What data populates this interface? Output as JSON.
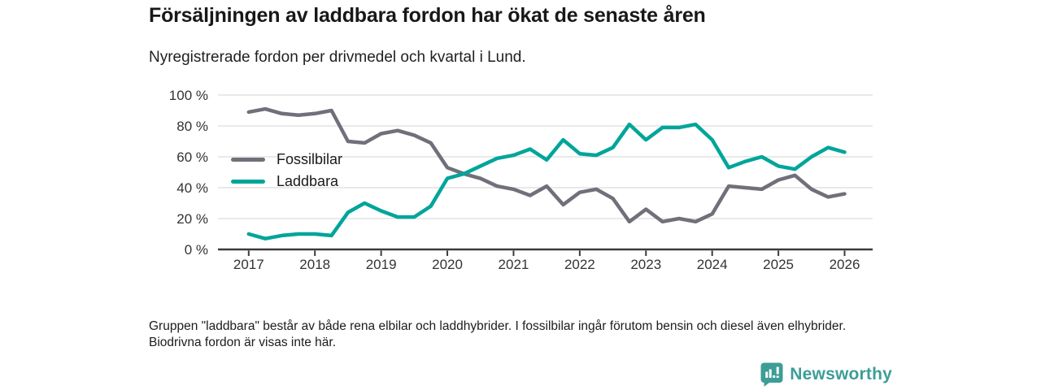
{
  "title": "Försäljningen av laddbara fordon har ökat de senaste åren",
  "subtitle": "Nyregistrerade fordon per drivmedel och kvartal i Lund.",
  "footnote": "Gruppen \"laddbara\" består av både rena elbilar och laddhybrider. I fossilbilar ingår förutom bensin och diesel även elhybrider. Biodrivna fordon är visas inte här.",
  "logo": {
    "text": "Newsworthy",
    "color": "#3d9d97"
  },
  "colors": {
    "fossil_line": "#70707a",
    "laddbara_line": "#00a59a",
    "gridline": "#dcdcdc",
    "axis": "#3b3b3b",
    "tick_label": "#333333"
  },
  "chart_data": {
    "type": "line",
    "title": "Försäljningen av laddbara fordon har ökat de senaste åren",
    "subtitle": "Nyregistrerade fordon per drivmedel och kvartal i Lund.",
    "x_unit": "kvartal",
    "grid": true,
    "legend_position": "inside-left",
    "ylim": [
      0,
      100
    ],
    "y_ticks": [
      0,
      20,
      40,
      60,
      80,
      100
    ],
    "y_tick_labels": [
      "0 %",
      "20 %",
      "40 %",
      "60 %",
      "80 %",
      "100 %"
    ],
    "x_tick_labels": [
      "2017",
      "2018",
      "2019",
      "2020",
      "2021",
      "2022",
      "2023",
      "2024",
      "2025",
      "2026"
    ],
    "x": [
      "2017Q1",
      "2017Q2",
      "2017Q3",
      "2017Q4",
      "2018Q1",
      "2018Q2",
      "2018Q3",
      "2018Q4",
      "2019Q1",
      "2019Q2",
      "2019Q3",
      "2019Q4",
      "2020Q1",
      "2020Q2",
      "2020Q3",
      "2020Q4",
      "2021Q1",
      "2021Q2",
      "2021Q3",
      "2021Q4",
      "2022Q1",
      "2022Q2",
      "2022Q3",
      "2022Q4",
      "2023Q1",
      "2023Q2",
      "2023Q3",
      "2023Q4",
      "2024Q1",
      "2024Q2",
      "2024Q3",
      "2024Q4",
      "2025Q1",
      "2025Q2",
      "2025Q3",
      "2025Q4",
      "2026Q1"
    ],
    "series": [
      {
        "name": "Fossilbilar",
        "color": "#70707a",
        "values": [
          89,
          91,
          88,
          87,
          88,
          90,
          70,
          69,
          75,
          77,
          74,
          69,
          53,
          49,
          46,
          41,
          39,
          35,
          41,
          29,
          37,
          39,
          33,
          18,
          26,
          18,
          20,
          18,
          23,
          41,
          40,
          39,
          45,
          48,
          39,
          34,
          36
        ]
      },
      {
        "name": "Laddbara",
        "color": "#00a59a",
        "values": [
          10,
          7,
          9,
          10,
          10,
          9,
          24,
          30,
          25,
          21,
          21,
          28,
          46,
          49,
          54,
          59,
          61,
          65,
          58,
          71,
          62,
          61,
          66,
          81,
          71,
          79,
          79,
          81,
          71,
          53,
          57,
          60,
          54,
          52,
          60,
          66,
          63
        ]
      }
    ]
  }
}
